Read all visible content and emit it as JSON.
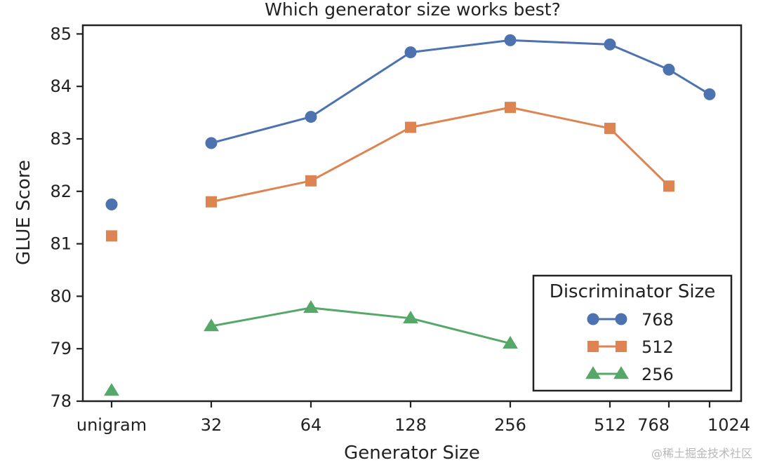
{
  "chart_data": {
    "type": "line",
    "title": "Which generator size works best?",
    "xlabel": "Generator Size",
    "ylabel": "GLUE Score",
    "x": [
      "unigram",
      "32",
      "64",
      "128",
      "256",
      "512",
      "768",
      "1024"
    ],
    "ylim": [
      78,
      85.3
    ],
    "yticks": [
      78,
      79,
      80,
      81,
      82,
      83,
      84,
      85
    ],
    "grid": false,
    "legend": {
      "title": "Discriminator Size",
      "position": "bottom-right"
    },
    "series": [
      {
        "name": "768",
        "color": "#4c72b0",
        "marker": "circle",
        "values": [
          81.75,
          82.92,
          83.42,
          84.65,
          84.88,
          84.8,
          84.32,
          83.85
        ]
      },
      {
        "name": "512",
        "color": "#dd8452",
        "marker": "square",
        "values": [
          81.15,
          81.8,
          82.2,
          83.22,
          83.6,
          83.2,
          82.1,
          null
        ]
      },
      {
        "name": "256",
        "color": "#55a868",
        "marker": "triangle",
        "values": [
          78.2,
          79.43,
          79.78,
          79.58,
          79.1,
          null,
          null,
          null
        ]
      }
    ]
  },
  "watermark": "@稀土掘金技术社区"
}
